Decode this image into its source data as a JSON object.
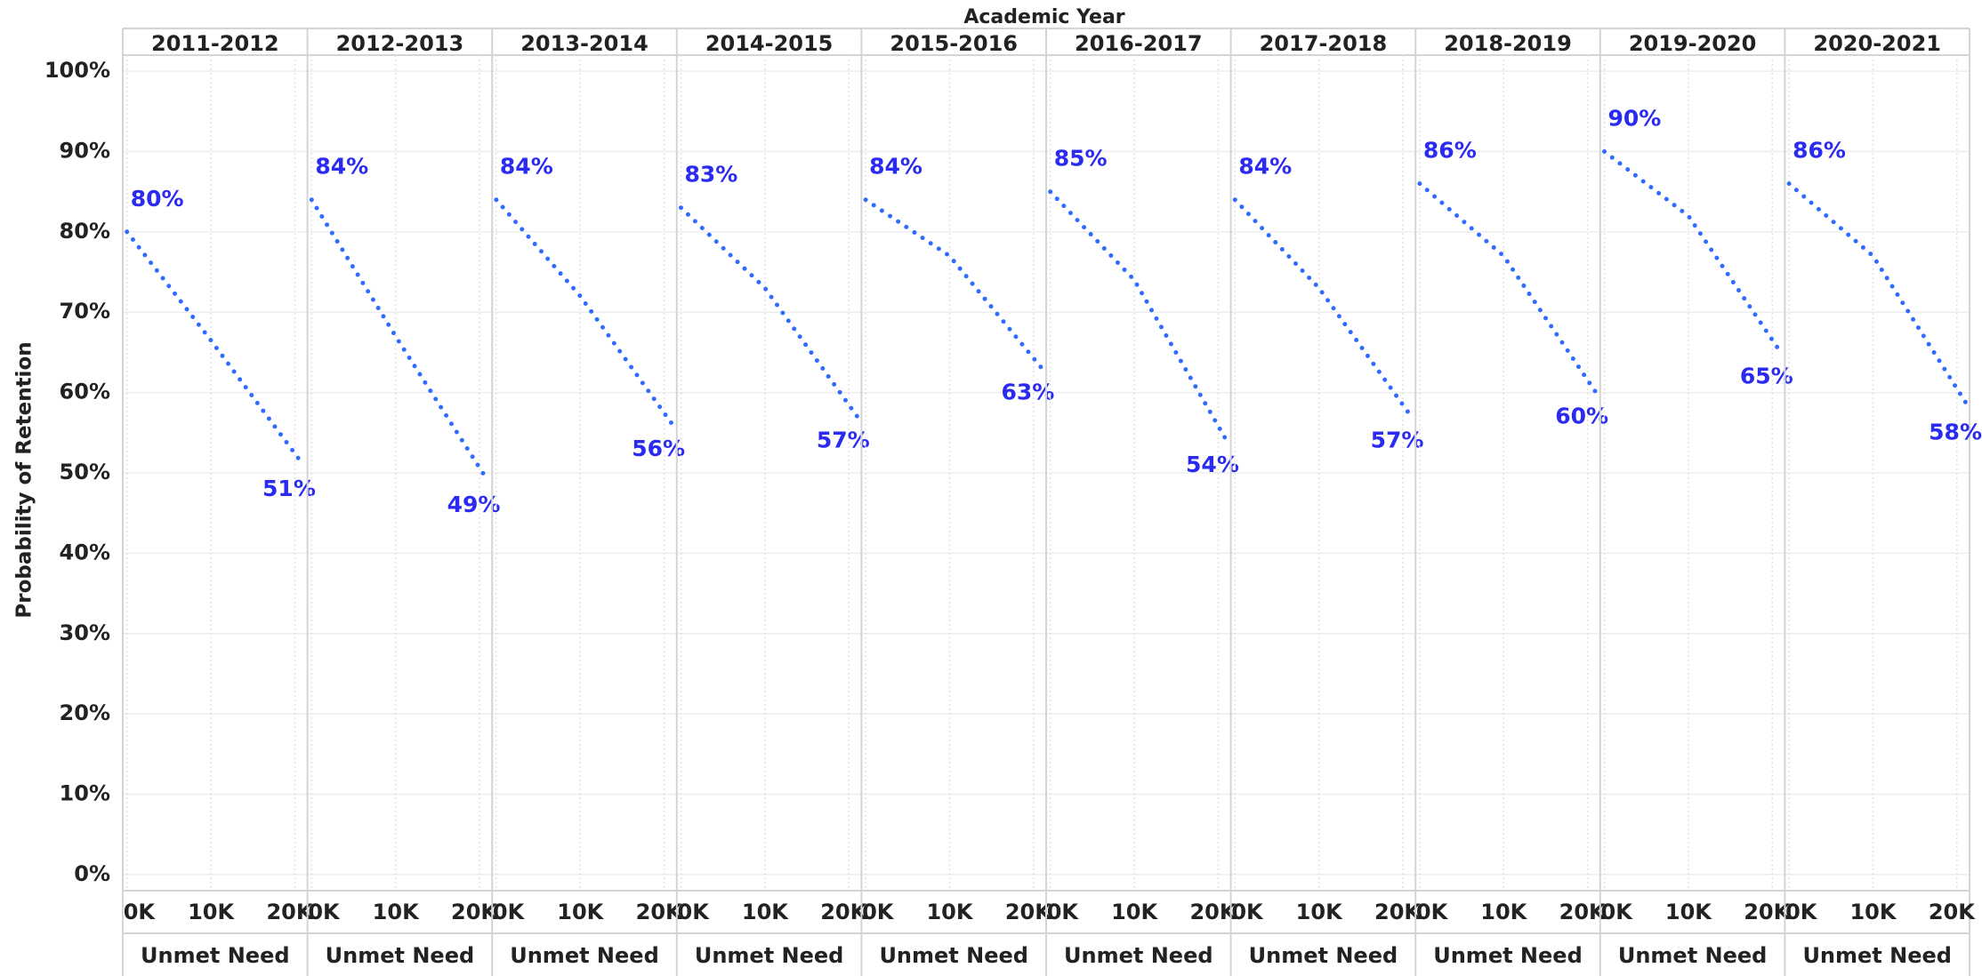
{
  "chart_data": {
    "type": "line",
    "facet_title": "Academic Year",
    "y_label": "Probability of Retention",
    "x_label": "Unmet Need",
    "color": "#2f6bff",
    "label_color": "#2a2af0",
    "grid": true,
    "xlim": [
      -500,
      21500
    ],
    "xticks": [
      {
        "value": 0,
        "label": "0K"
      },
      {
        "value": 10000,
        "label": "10K"
      },
      {
        "value": 20000,
        "label": "20K"
      }
    ],
    "ylim": [
      -2,
      102
    ],
    "yticks": [
      {
        "value": 0,
        "label": "0%"
      },
      {
        "value": 10,
        "label": "10%"
      },
      {
        "value": 20,
        "label": "20%"
      },
      {
        "value": 30,
        "label": "30%"
      },
      {
        "value": 40,
        "label": "40%"
      },
      {
        "value": 50,
        "label": "50%"
      },
      {
        "value": 60,
        "label": "60%"
      },
      {
        "value": 70,
        "label": "70%"
      },
      {
        "value": 80,
        "label": "80%"
      },
      {
        "value": 90,
        "label": "90%"
      },
      {
        "value": 100,
        "label": "100%"
      }
    ],
    "panels": [
      {
        "title": "2011-2012",
        "x": [
          0,
          10000,
          21000
        ],
        "values": [
          80,
          66.5,
          51
        ],
        "value_labels": [
          "80%",
          null,
          "51%"
        ]
      },
      {
        "title": "2012-2013",
        "x": [
          0,
          10000,
          21000
        ],
        "values": [
          84,
          67,
          49
        ],
        "value_labels": [
          "84%",
          null,
          "49%"
        ]
      },
      {
        "title": "2013-2014",
        "x": [
          0,
          10000,
          21000
        ],
        "values": [
          84,
          72,
          56
        ],
        "value_labels": [
          "84%",
          null,
          "56%"
        ]
      },
      {
        "title": "2014-2015",
        "x": [
          0,
          10000,
          21000
        ],
        "values": [
          83,
          73,
          57
        ],
        "value_labels": [
          "83%",
          null,
          "57%"
        ]
      },
      {
        "title": "2015-2016",
        "x": [
          0,
          10000,
          21000
        ],
        "values": [
          84,
          77,
          63
        ],
        "value_labels": [
          "84%",
          null,
          "63%"
        ]
      },
      {
        "title": "2016-2017",
        "x": [
          0,
          10000,
          21000
        ],
        "values": [
          85,
          74,
          54
        ],
        "value_labels": [
          "85%",
          null,
          "54%"
        ]
      },
      {
        "title": "2017-2018",
        "x": [
          0,
          10000,
          21000
        ],
        "values": [
          84,
          73,
          57
        ],
        "value_labels": [
          "84%",
          null,
          "57%"
        ]
      },
      {
        "title": "2018-2019",
        "x": [
          0,
          10000,
          21000
        ],
        "values": [
          86,
          77,
          60
        ],
        "value_labels": [
          "86%",
          null,
          "60%"
        ]
      },
      {
        "title": "2019-2020",
        "x": [
          0,
          10000,
          21000
        ],
        "values": [
          90,
          82,
          65
        ],
        "value_labels": [
          "90%",
          null,
          "65%"
        ]
      },
      {
        "title": "2020-2021",
        "x": [
          0,
          10000,
          21500
        ],
        "values": [
          86,
          77,
          58
        ],
        "value_labels": [
          "86%",
          null,
          "58%"
        ]
      }
    ]
  }
}
